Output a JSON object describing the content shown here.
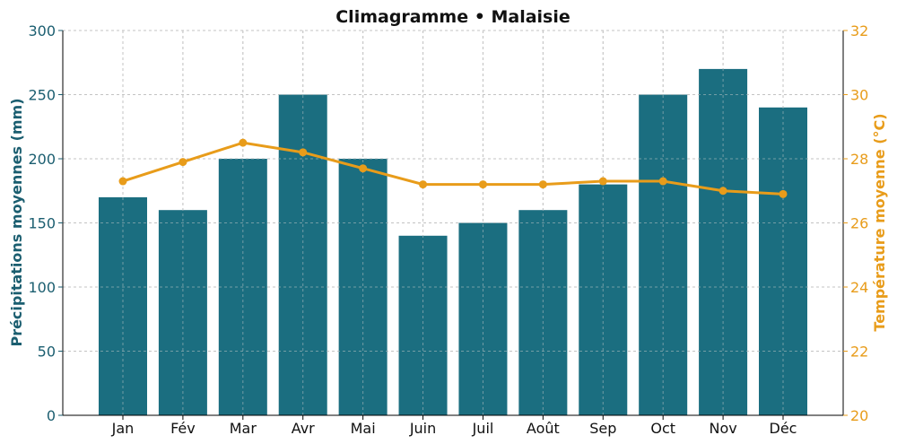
{
  "chart_data": {
    "type": "bar+line",
    "title": "Climagramme • Malaisie",
    "categories": [
      "Jan",
      "Fév",
      "Mar",
      "Avr",
      "Mai",
      "Juin",
      "Juil",
      "Août",
      "Sep",
      "Oct",
      "Nov",
      "Déc"
    ],
    "series": [
      {
        "name": "Précipitations moyennes (mm)",
        "type": "bar",
        "axis": "left",
        "color": "#1b6e80",
        "values": [
          170,
          160,
          200,
          250,
          200,
          140,
          150,
          160,
          180,
          250,
          270,
          240
        ]
      },
      {
        "name": "Température moyenne (°C)",
        "type": "line",
        "axis": "right",
        "color": "#e89c1a",
        "values": [
          27.3,
          27.9,
          28.5,
          28.2,
          27.7,
          27.2,
          27.2,
          27.2,
          27.3,
          27.3,
          27.0,
          26.9
        ]
      }
    ],
    "ylabel": "Précipitations moyennes (mm)",
    "ylabel_right": "Température moyenne (°C)",
    "ylim": [
      0,
      300
    ],
    "ylim_right": [
      20,
      32
    ],
    "yticks": [
      0,
      50,
      100,
      150,
      200,
      250,
      300
    ],
    "yticks_right": [
      20,
      22,
      24,
      26,
      28,
      30,
      32
    ],
    "grid": true
  }
}
